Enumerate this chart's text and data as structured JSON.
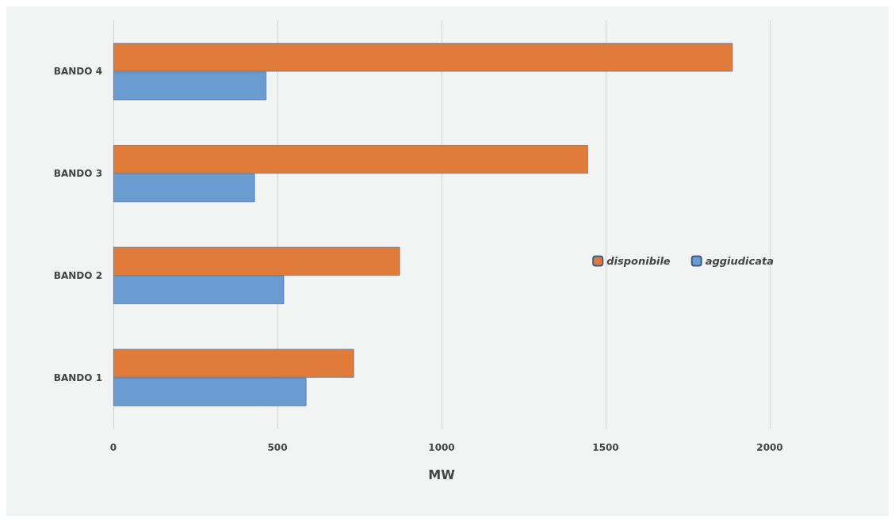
{
  "chart_data": {
    "type": "bar",
    "orientation": "horizontal",
    "categories": [
      "BANDO 4",
      "BANDO 3",
      "BANDO 2",
      "BANDO 1"
    ],
    "series": [
      {
        "name": "disponibile",
        "color": "#e07b39",
        "values": [
          1887,
          1446,
          873,
          733
        ]
      },
      {
        "name": "aggiudicata",
        "color": "#6a9bd1",
        "values": [
          466,
          431,
          520,
          588
        ]
      }
    ],
    "xlabel": "MW",
    "xlim": [
      0,
      2000
    ],
    "xticks": [
      0,
      500,
      1000,
      1500,
      2000
    ],
    "grid": "x",
    "legend": "right"
  }
}
